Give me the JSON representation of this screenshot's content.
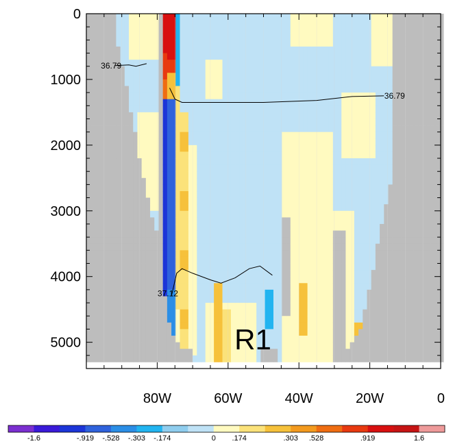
{
  "chart_data": {
    "type": "heatmap",
    "title": "",
    "xlabel": "",
    "ylabel": "",
    "x_ticks": [
      {
        "value": -80,
        "label": "80W"
      },
      {
        "value": -60,
        "label": "60W"
      },
      {
        "value": -40,
        "label": "40W"
      },
      {
        "value": -20,
        "label": "20W"
      },
      {
        "value": 0,
        "label": "0"
      }
    ],
    "y_ticks": [
      {
        "value": 0,
        "label": "0"
      },
      {
        "value": 1000,
        "label": "1000"
      },
      {
        "value": 2000,
        "label": "2000"
      },
      {
        "value": 3000,
        "label": "3000"
      },
      {
        "value": 4000,
        "label": "4000"
      },
      {
        "value": 5000,
        "label": "5000"
      }
    ],
    "xlim": [
      -100,
      0
    ],
    "ylim": [
      5400,
      0
    ],
    "grid": true,
    "background_land_color": "#bdbdbd",
    "colorbar": {
      "labels": [
        "-1.6",
        "-.919",
        "-.528",
        "-.303",
        "-.174",
        "0",
        ".174",
        ".303",
        ".528",
        ".919",
        "1.6"
      ],
      "colors": [
        "#7b2fd0",
        "#3a1ad8",
        "#1c35d8",
        "#2f62dc",
        "#2b8ee6",
        "#22b4f0",
        "#8fcdee",
        "#bfe2f6",
        "#fffac0",
        "#fbe27a",
        "#f6c13b",
        "#f39a1e",
        "#ef6d12",
        "#e83a10",
        "#d81010",
        "#c61414",
        "#ee9a9a"
      ]
    },
    "series": [
      {
        "name": "36.79",
        "kind": "contour",
        "points": [
          [
            -92,
            790
          ],
          [
            -88,
            780
          ],
          [
            -86,
            800
          ],
          [
            -83,
            760
          ]
        ]
      },
      {
        "name": "36.79",
        "kind": "contour",
        "points": [
          [
            -76.5,
            1130
          ],
          [
            -75,
            1300
          ],
          [
            -73,
            1350
          ],
          [
            -65,
            1350
          ],
          [
            -50,
            1350
          ],
          [
            -35,
            1320
          ],
          [
            -25,
            1260
          ],
          [
            -16,
            1250
          ]
        ]
      },
      {
        "name": "37.12",
        "kind": "contour",
        "points": [
          [
            -76,
            4300
          ],
          [
            -74.5,
            3950
          ],
          [
            -73,
            3880
          ],
          [
            -70,
            3950
          ],
          [
            -65,
            4050
          ],
          [
            -62,
            4100
          ],
          [
            -58,
            4020
          ],
          [
            -54,
            3880
          ],
          [
            -51,
            3840
          ],
          [
            -47.5,
            3980
          ]
        ]
      }
    ],
    "contour_labels": [
      {
        "text": "36.79",
        "x": -93,
        "y": 790
      },
      {
        "text": "36.79",
        "x": -13,
        "y": 1250
      },
      {
        "text": "37.12",
        "x": -77,
        "y": 4260
      }
    ],
    "annotations": [
      {
        "text": "R1",
        "x": -53,
        "y": 4950
      }
    ]
  }
}
